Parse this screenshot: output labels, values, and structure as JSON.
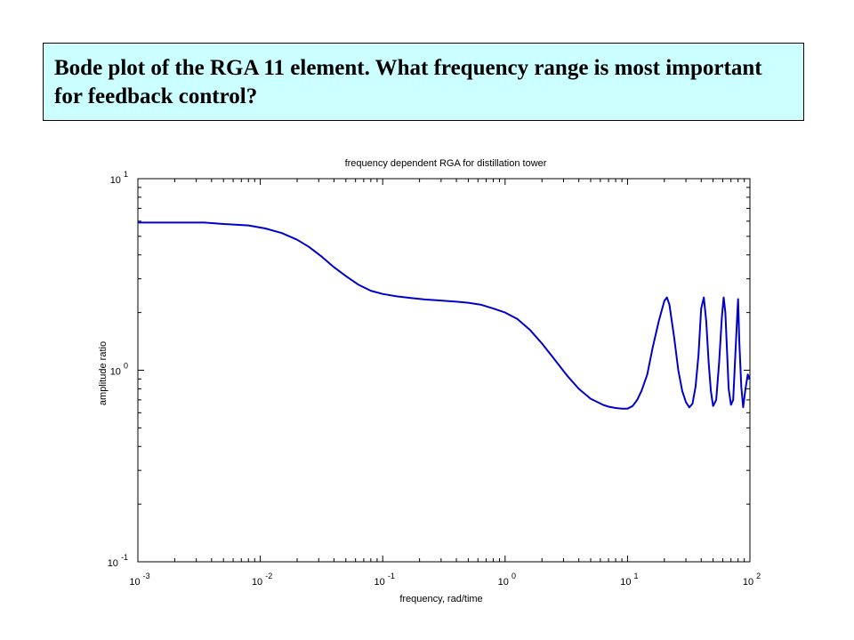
{
  "slide": {
    "heading": "Bode plot of the RGA 11 element.  What frequency range is most important for feedback control?"
  },
  "chart_data": {
    "type": "line",
    "title": "frequency dependent RGA for distillation tower",
    "xlabel": "frequency, rad/time",
    "ylabel": "amplitude ratio",
    "x_scale": "log",
    "y_scale": "log",
    "xlim": [
      0.001,
      100
    ],
    "ylim": [
      0.1,
      10
    ],
    "grid": false,
    "x_ticks": [
      {
        "base": "10",
        "exp": "-3",
        "value": 0.001
      },
      {
        "base": "10",
        "exp": "-2",
        "value": 0.01
      },
      {
        "base": "10",
        "exp": "-1",
        "value": 0.1
      },
      {
        "base": "10",
        "exp": "0",
        "value": 1
      },
      {
        "base": "10",
        "exp": "1",
        "value": 10
      },
      {
        "base": "10",
        "exp": "2",
        "value": 100
      }
    ],
    "y_ticks": [
      {
        "base": "10",
        "exp": "-1",
        "value": 0.1
      },
      {
        "base": "10",
        "exp": "0",
        "value": 1
      },
      {
        "base": "10",
        "exp": "1",
        "value": 10
      }
    ],
    "line_color": "#0000cc",
    "series": [
      {
        "x": [
          0.001,
          0.002,
          0.0035,
          0.005,
          0.008,
          0.011,
          0.015,
          0.02,
          0.025,
          0.032,
          0.04,
          0.05,
          0.063,
          0.08,
          0.1,
          0.13,
          0.17,
          0.22,
          0.3,
          0.4,
          0.5,
          0.63,
          0.8,
          1.0,
          1.26,
          1.6,
          2.0,
          2.5,
          3.2,
          4.0,
          5.0,
          6.3,
          7.0,
          8.0,
          9.0,
          10.0,
          11.0,
          12.0,
          13.0,
          14.5,
          16.0,
          18.0,
          20.0,
          21.0,
          22.0,
          24.0,
          26.0,
          28.0,
          30.0,
          32.0,
          34.0,
          36.0,
          38.0,
          40.0,
          42.0,
          44.0,
          46.0,
          48.0,
          50.0,
          53.0,
          56.0,
          59.0,
          61.0,
          63.0,
          65.0,
          67.0,
          70.0,
          73.0,
          76.0,
          79.0,
          80.0,
          82.0,
          85.0,
          88.0,
          92.0,
          96.0,
          100.0
        ],
        "y": [
          5.9,
          5.9,
          5.9,
          5.8,
          5.7,
          5.5,
          5.2,
          4.8,
          4.4,
          3.9,
          3.45,
          3.1,
          2.8,
          2.6,
          2.5,
          2.43,
          2.38,
          2.34,
          2.31,
          2.28,
          2.25,
          2.2,
          2.1,
          2.0,
          1.85,
          1.62,
          1.38,
          1.15,
          0.94,
          0.8,
          0.71,
          0.66,
          0.645,
          0.635,
          0.63,
          0.63,
          0.65,
          0.7,
          0.78,
          0.95,
          1.3,
          1.8,
          2.3,
          2.4,
          2.2,
          1.5,
          1.0,
          0.78,
          0.68,
          0.64,
          0.67,
          0.82,
          1.2,
          2.1,
          2.4,
          1.8,
          1.1,
          0.78,
          0.65,
          0.7,
          1.1,
          1.9,
          2.4,
          2.0,
          1.25,
          0.8,
          0.66,
          0.7,
          1.2,
          2.0,
          2.35,
          1.4,
          0.82,
          0.64,
          0.8,
          0.95,
          0.9
        ]
      }
    ]
  }
}
